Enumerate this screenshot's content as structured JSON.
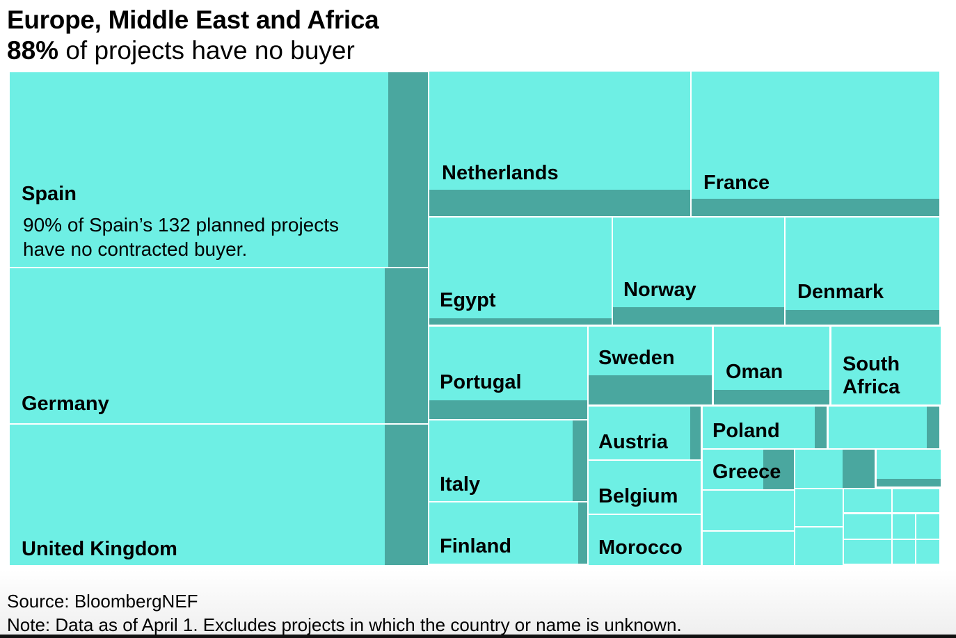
{
  "chart_data": {
    "type": "treemap",
    "title": "Europe, Middle East and Africa",
    "subtitle_highlight": "88%",
    "subtitle_rest": " of projects have no buyer",
    "annotation": "90% of Spain’s 132 planned projects have no contracted buyer.",
    "legend": {
      "light": "no buyer",
      "dark": "contracted buyer"
    },
    "colors": {
      "no_buyer": "#6eefe4",
      "contracted": "#4aa79f"
    },
    "countries": [
      {
        "name": "Spain",
        "no_buyer_share": 0.9
      },
      {
        "name": "Germany",
        "no_buyer_share": 0.9
      },
      {
        "name": "United Kingdom",
        "no_buyer_share": 0.9
      },
      {
        "name": "Netherlands",
        "no_buyer_share": 0.82
      },
      {
        "name": "France",
        "no_buyer_share": 0.88
      },
      {
        "name": "Egypt",
        "no_buyer_share": 0.94
      },
      {
        "name": "Norway",
        "no_buyer_share": 0.84
      },
      {
        "name": "Denmark",
        "no_buyer_share": 0.86
      },
      {
        "name": "Portugal",
        "no_buyer_share": 0.8
      },
      {
        "name": "Sweden",
        "no_buyer_share": 0.62
      },
      {
        "name": "Oman",
        "no_buyer_share": 0.81
      },
      {
        "name": "South Africa",
        "no_buyer_share": 1.0
      },
      {
        "name": "Italy",
        "no_buyer_share": 0.91
      },
      {
        "name": "Finland",
        "no_buyer_share": 0.94
      },
      {
        "name": "Austria",
        "no_buyer_share": 0.91
      },
      {
        "name": "Belgium",
        "no_buyer_share": 1.0
      },
      {
        "name": "Morocco",
        "no_buyer_share": 1.0
      },
      {
        "name": "Poland",
        "no_buyer_share": 0.9
      },
      {
        "name": "",
        "no_buyer_share": 0.89
      },
      {
        "name": "Greece",
        "no_buyer_share": 0.66
      },
      {
        "name": "",
        "no_buyer_share": 0.6
      },
      {
        "name": "",
        "no_buyer_share": 0.8
      },
      {
        "name": "",
        "no_buyer_share": 1.0
      },
      {
        "name": "",
        "no_buyer_share": 1.0
      },
      {
        "name": "",
        "no_buyer_share": 1.0
      },
      {
        "name": "",
        "no_buyer_share": 1.0
      },
      {
        "name": "",
        "no_buyer_share": 1.0
      },
      {
        "name": "",
        "no_buyer_share": 1.0
      },
      {
        "name": "",
        "no_buyer_share": 1.0
      },
      {
        "name": "",
        "no_buyer_share": 1.0
      },
      {
        "name": "",
        "no_buyer_share": 1.0
      },
      {
        "name": "",
        "no_buyer_share": 1.0
      },
      {
        "name": "",
        "no_buyer_share": 1.0
      },
      {
        "name": "",
        "no_buyer_share": 1.0
      }
    ]
  },
  "footer": {
    "source": "Source: BloombergNEF",
    "note": "Note: Data as of April 1. Excludes projects in which the country or name is unknown."
  }
}
